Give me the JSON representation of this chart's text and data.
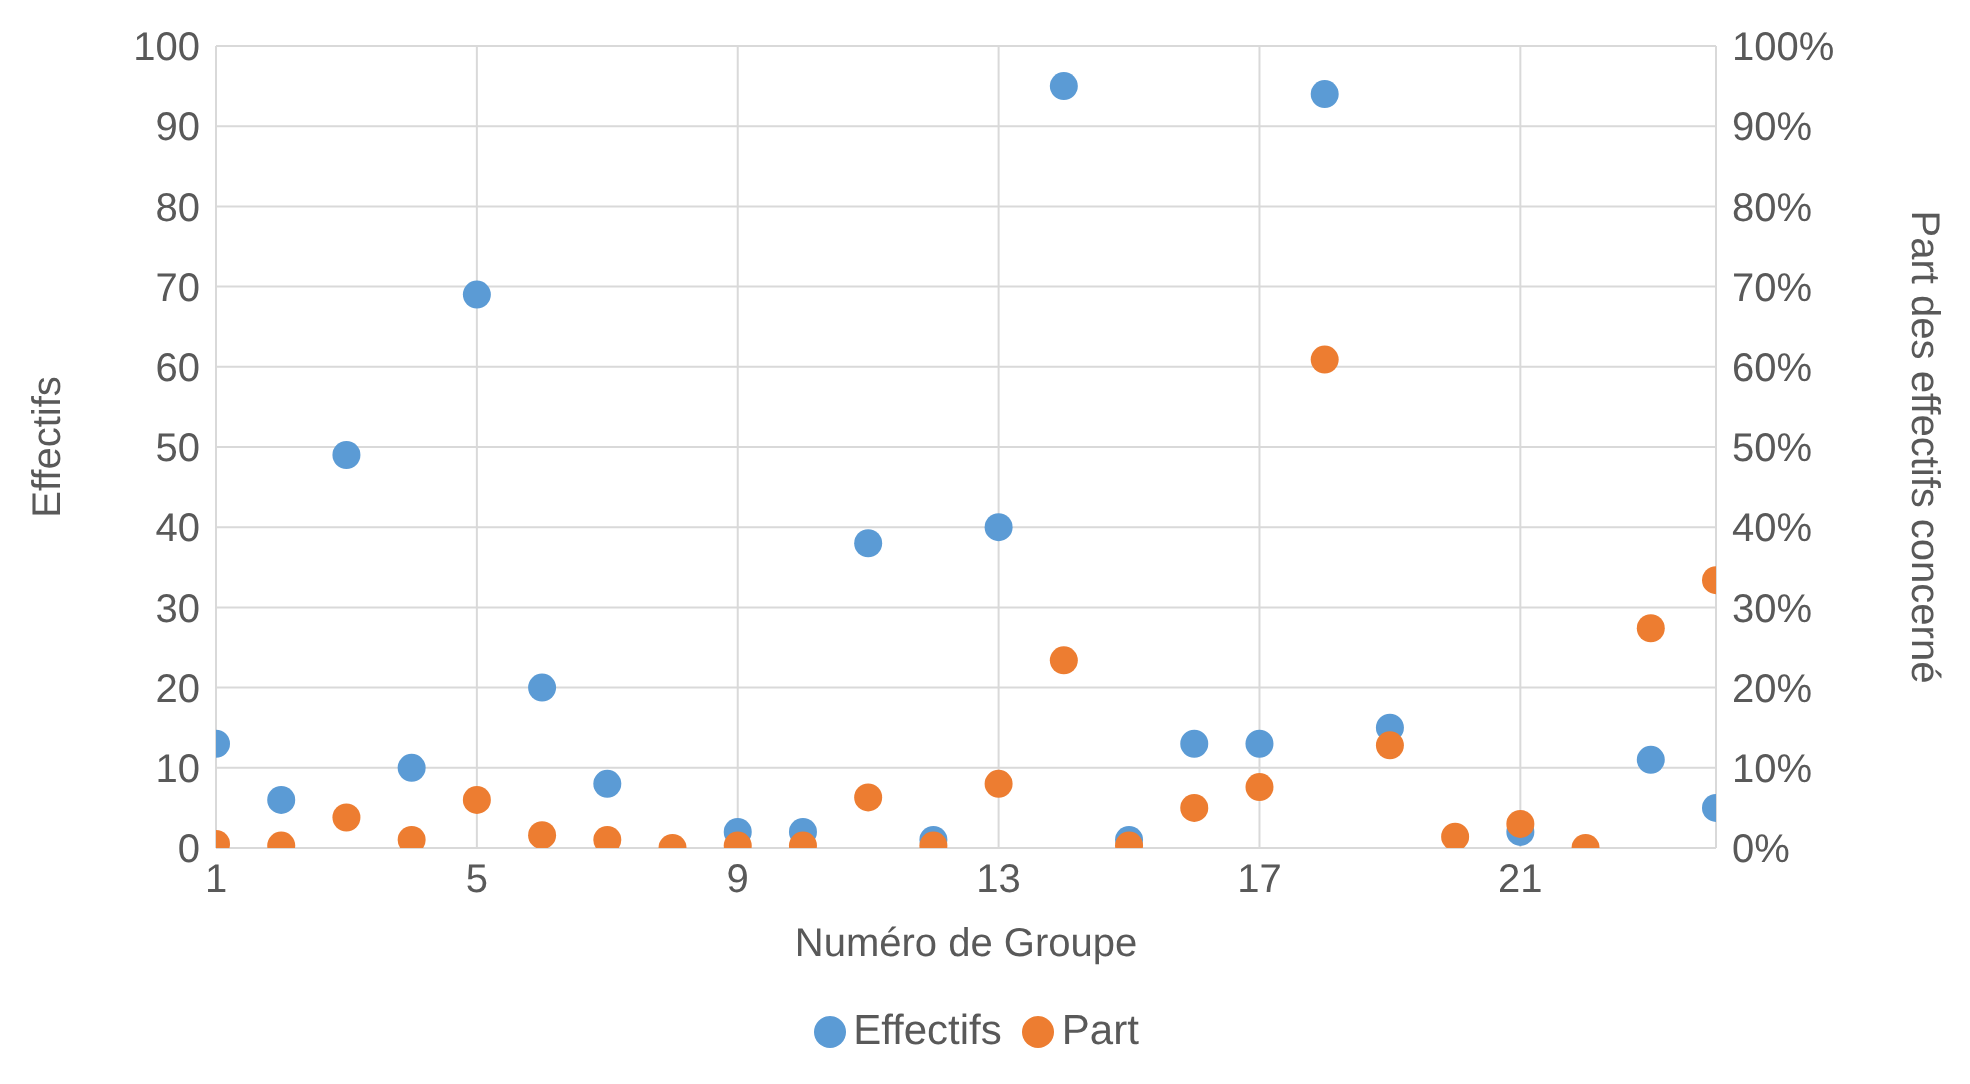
{
  "chart_data": {
    "type": "scatter",
    "xlabel": "Numéro de Groupe",
    "ylabel": "Effectifs",
    "y2label": "Part des effectifs concerné",
    "x": [
      1,
      2,
      3,
      4,
      5,
      6,
      7,
      8,
      9,
      10,
      11,
      12,
      13,
      14,
      15,
      16,
      17,
      18,
      19,
      20,
      21,
      22,
      23,
      24
    ],
    "series": [
      {
        "name": "Effectifs",
        "color": "#5b9bd5",
        "values": [
          13,
          6,
          49,
          10,
          69,
          20,
          8,
          null,
          2,
          2,
          38,
          1,
          40,
          95,
          1,
          13,
          13,
          94,
          15,
          null,
          2,
          null,
          11,
          5
        ]
      },
      {
        "name": "Part",
        "color": "#ed7d31",
        "axis": "y2",
        "values": [
          0.5,
          0.3,
          3.8,
          1,
          6,
          1.6,
          1,
          0,
          0.3,
          0.3,
          6.3,
          0.3,
          8,
          23.4,
          0.3,
          5,
          7.6,
          60.9,
          12.8,
          1.4,
          3,
          0,
          27.4,
          33.4
        ]
      }
    ],
    "xlim": [
      1,
      24
    ],
    "xticks": [
      1,
      5,
      9,
      13,
      17,
      21
    ],
    "ylim": [
      0,
      100
    ],
    "yticks": [
      0,
      10,
      20,
      30,
      40,
      50,
      60,
      70,
      80,
      90,
      100
    ],
    "y2lim": [
      0,
      100
    ],
    "y2ticks": [
      {
        "value": 0,
        "label": "0%"
      },
      {
        "value": 10,
        "label": "10%"
      },
      {
        "value": 20,
        "label": "20%"
      },
      {
        "value": 30,
        "label": "30%"
      },
      {
        "value": 40,
        "label": "40%"
      },
      {
        "value": 50,
        "label": "50%"
      },
      {
        "value": 60,
        "label": "60%"
      },
      {
        "value": 70,
        "label": "70%"
      },
      {
        "value": 80,
        "label": "80%"
      },
      {
        "value": 90,
        "label": "90%"
      },
      {
        "value": 100,
        "label": "100%"
      }
    ],
    "grid": true,
    "legend": "bottom",
    "marker": "circle"
  }
}
